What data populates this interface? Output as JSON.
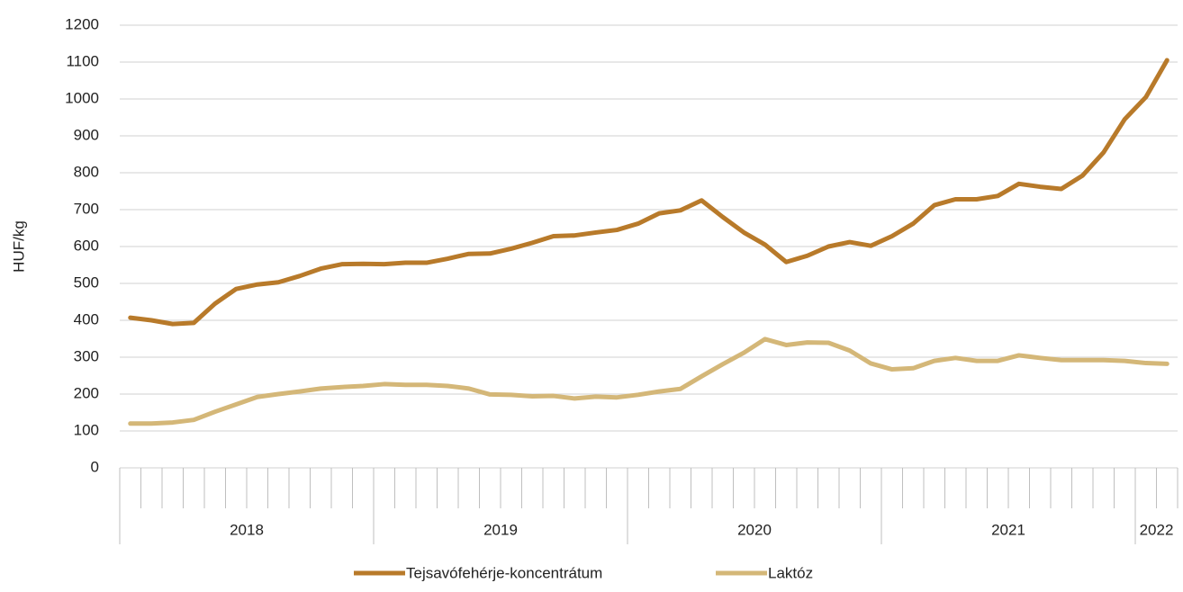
{
  "chart_data": {
    "type": "line",
    "y_label": "HUF/kg",
    "categories": [
      null,
      null,
      null,
      null,
      null,
      null,
      null,
      null,
      null,
      null,
      null,
      null,
      null,
      null,
      null,
      null,
      null,
      null,
      null,
      null,
      null,
      null,
      null,
      null,
      null,
      null,
      null,
      null,
      null,
      null,
      null,
      null,
      null,
      null,
      null,
      null,
      null,
      null,
      null,
      null,
      null,
      null,
      null,
      null,
      null,
      null,
      null,
      null,
      null,
      null
    ],
    "groups": [
      {
        "label": "2018",
        "span": 12
      },
      {
        "label": "2019",
        "span": 12
      },
      {
        "label": "2020",
        "span": 12
      },
      {
        "label": "2021",
        "span": 12
      },
      {
        "label": "2022",
        "span": 2
      }
    ],
    "series": [
      {
        "name": "Tejsavófehérje-koncentrátum",
        "color": "#b87a2a",
        "values": [
          407,
          400,
          390,
          393,
          445,
          485,
          497,
          503,
          520,
          540,
          552,
          553,
          552,
          556,
          556,
          567,
          580,
          581,
          594,
          610,
          628,
          630,
          638,
          645,
          662,
          690,
          698,
          725,
          680,
          638,
          605,
          558,
          575,
          600,
          612,
          602,
          628,
          662,
          712,
          728,
          728,
          737,
          770,
          762,
          756,
          792,
          855,
          945,
          1005,
          1105
        ]
      },
      {
        "name": "Laktóz",
        "color": "#d4b778",
        "values": [
          120,
          120,
          123,
          130,
          152,
          172,
          192,
          200,
          207,
          215,
          219,
          222,
          227,
          225,
          225,
          222,
          215,
          199,
          198,
          194,
          195,
          188,
          193,
          191,
          198,
          207,
          214,
          248,
          281,
          312,
          349,
          333,
          340,
          339,
          318,
          283,
          267,
          270,
          290,
          298,
          290,
          290,
          305,
          298,
          292,
          292,
          292,
          290,
          284,
          282
        ]
      }
    ],
    "ylim": [
      0,
      1200
    ],
    "yticks": [
      0,
      100,
      200,
      300,
      400,
      500,
      600,
      700,
      800,
      900,
      1000,
      1100,
      1200
    ],
    "grid": true,
    "legend": "bottom"
  }
}
